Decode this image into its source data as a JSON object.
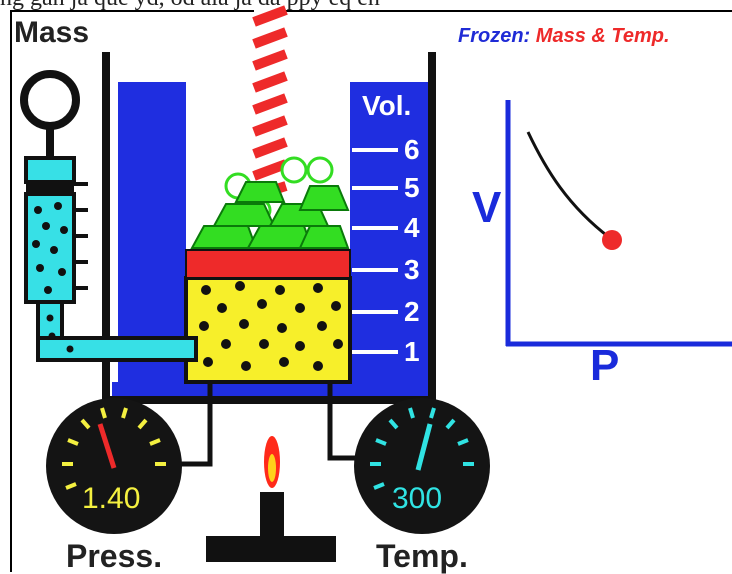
{
  "header_caption": "ng gan ja que yd, od ala ja da ppy eq en",
  "labels": {
    "mass": "Mass",
    "volume": "Vol.",
    "status_prefix": "Frozen: ",
    "status_highlight": "Mass & Temp.",
    "axis_y": "V",
    "axis_x": "P"
  },
  "volume_scale": [
    "6",
    "5",
    "4",
    "3",
    "2",
    "1"
  ],
  "gauges": {
    "pressure": {
      "value": "1.40",
      "label": "Press."
    },
    "temperature": {
      "value": "300",
      "label": "Temp."
    }
  },
  "graph": {
    "curve": "hyperbola",
    "current_point": {
      "P": 1.4,
      "V": 3.6
    }
  },
  "colors": {
    "bath_blue": "#1f2ee0",
    "gas_yellow": "#f7ef2a",
    "piston_red": "#ee2a2a",
    "weight_green": "#33dd22",
    "axis_blue": "#1a2bdb",
    "syringe_cyan": "#37e0e6",
    "gauge_black": "#141414"
  }
}
